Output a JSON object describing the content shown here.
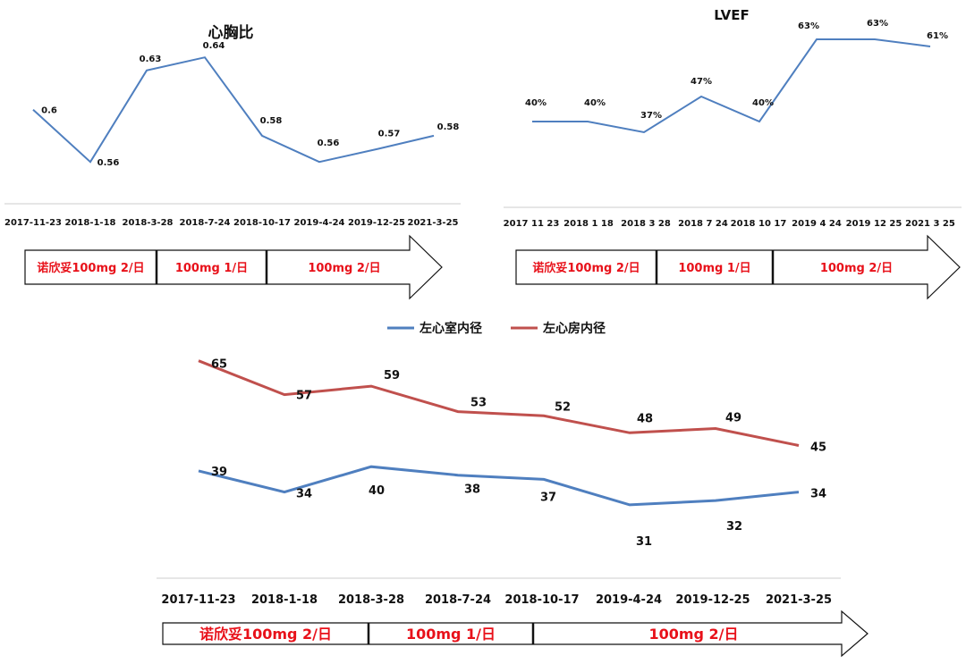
{
  "colors": {
    "blue": "#4f7fbf",
    "red": "#c0504d",
    "regimen_text": "#e8111a",
    "axis_line": "#cccccc"
  },
  "regimen": {
    "labels": [
      "诺欣妥100mg 2/日",
      "100mg 1/日",
      "100mg 2/日"
    ]
  },
  "chart_data": [
    {
      "type": "line",
      "title": "心胸比",
      "categories": [
        "2017-11-23",
        "2018-1-18",
        "2018-3-28",
        "2018-7-24",
        "2018-10-17",
        "2019-4-24",
        "2019-12-25",
        "2021-3-25"
      ],
      "series": [
        {
          "values": [
            0.6,
            0.56,
            0.63,
            0.64,
            0.58,
            0.56,
            0.57,
            0.58
          ],
          "labels": [
            "0.6",
            "0.56",
            "0.63",
            "0.64",
            "0.58",
            "0.56",
            "0.57",
            "0.58"
          ]
        }
      ],
      "ylim": [
        0.53,
        0.66
      ],
      "grid": false
    },
    {
      "type": "line",
      "title": "LVEF",
      "categories": [
        "2017 11 23",
        "2018 1 18",
        "2018 3 28",
        "2018 7 24",
        "2018 10 17",
        "2019 4 24",
        "2019 12 25",
        "2021 3 25"
      ],
      "series": [
        {
          "values": [
            40,
            40,
            37,
            47,
            40,
            63,
            63,
            61
          ],
          "labels": [
            "40%",
            "40%",
            "37%",
            "47%",
            "40%",
            "63%",
            "63%",
            "61%"
          ]
        }
      ],
      "ylim": [
        20,
        70
      ],
      "grid": false
    },
    {
      "type": "line",
      "title": "",
      "categories": [
        "2017-11-23",
        "2018-1-18",
        "2018-3-28",
        "2018-7-24",
        "2018-10-17",
        "2019-4-24",
        "2019-12-25",
        "2021-3-25"
      ],
      "series": [
        {
          "name": "左心室内径",
          "color": "#4f7fbf",
          "values": [
            39,
            34,
            40,
            38,
            37,
            31,
            32,
            34
          ]
        },
        {
          "name": "左心房内径",
          "color": "#c0504d",
          "values": [
            65,
            57,
            59,
            53,
            52,
            48,
            49,
            45
          ]
        }
      ],
      "ylim": [
        20,
        70
      ],
      "legend": "top",
      "grid": false
    }
  ]
}
